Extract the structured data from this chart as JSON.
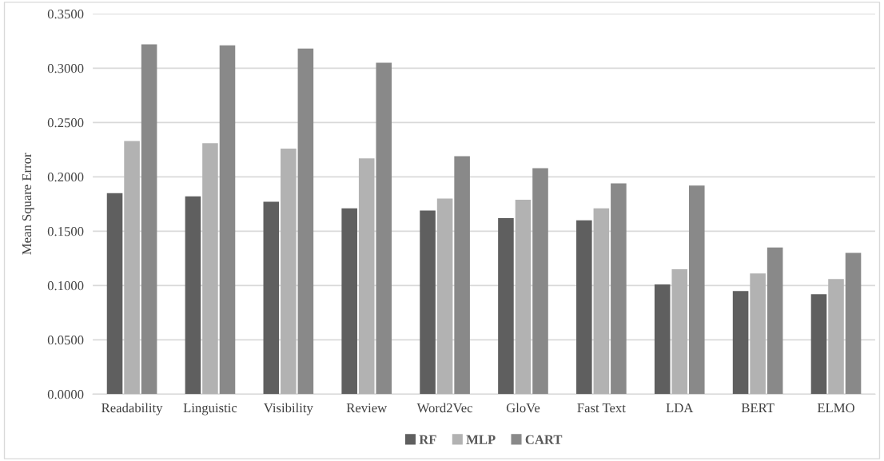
{
  "chart_data": {
    "type": "bar",
    "ylabel": "Mean Square Error",
    "categories": [
      "Readability",
      "Linguistic",
      "Visibility",
      "Review",
      "Word2Vec",
      "GloVe",
      "Fast Text",
      "LDA",
      "BERT",
      "ELMO"
    ],
    "series": [
      {
        "name": "RF",
        "color": "#5f5f5f",
        "values": [
          0.185,
          0.182,
          0.177,
          0.171,
          0.169,
          0.162,
          0.16,
          0.101,
          0.095,
          0.092
        ]
      },
      {
        "name": "MLP",
        "color": "#b2b2b2",
        "values": [
          0.233,
          0.231,
          0.226,
          0.217,
          0.18,
          0.179,
          0.171,
          0.115,
          0.111,
          0.106
        ]
      },
      {
        "name": "CART",
        "color": "#898989",
        "values": [
          0.322,
          0.321,
          0.318,
          0.305,
          0.219,
          0.208,
          0.194,
          0.192,
          0.135,
          0.13
        ]
      }
    ],
    "ylim": [
      0,
      0.35
    ],
    "yticks": [
      {
        "value": 0,
        "label": "0.0000"
      },
      {
        "value": 0.05,
        "label": "0.0500"
      },
      {
        "value": 0.1,
        "label": "0.1000"
      },
      {
        "value": 0.15,
        "label": "0.1500"
      },
      {
        "value": 0.2,
        "label": "0.2000"
      },
      {
        "value": 0.25,
        "label": "0.2500"
      },
      {
        "value": 0.3,
        "label": "0.3000"
      },
      {
        "value": 0.35,
        "label": "0.3500"
      }
    ],
    "grid": "y",
    "legend": "bottom"
  }
}
